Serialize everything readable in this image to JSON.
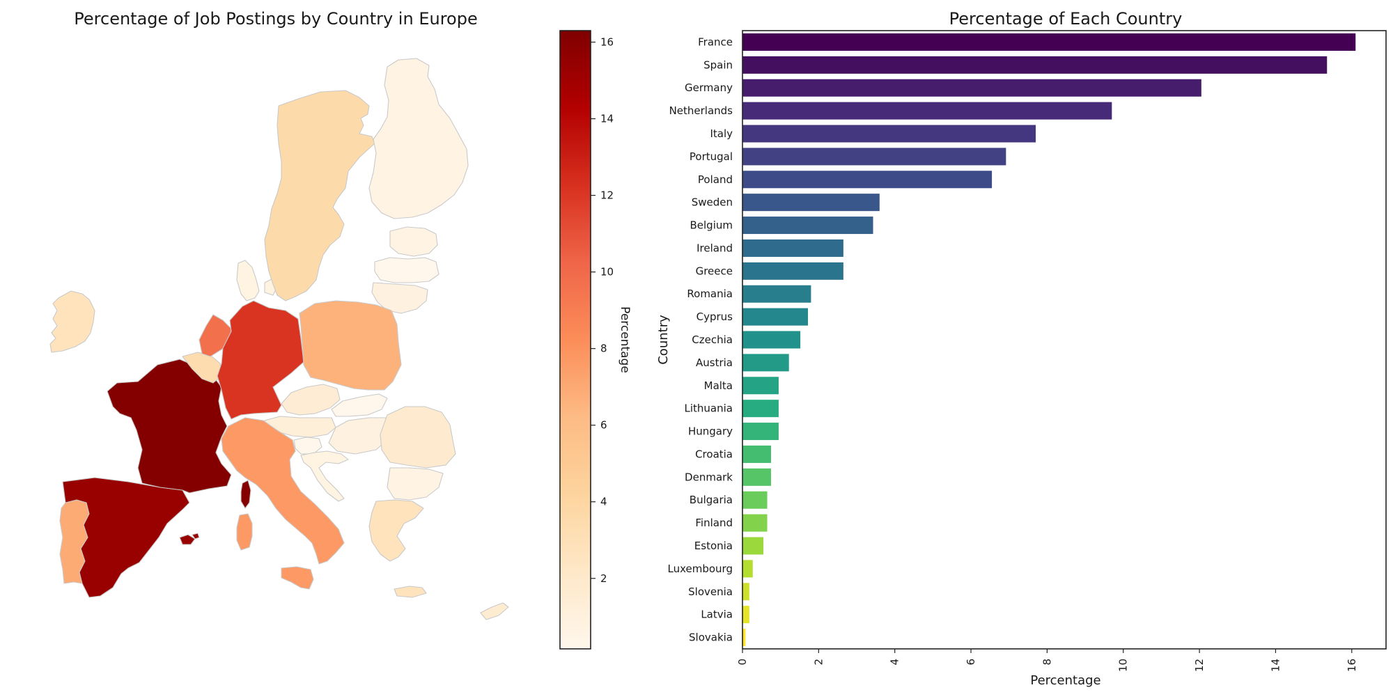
{
  "chart_data": [
    {
      "type": "choropleth-map",
      "title": "Percentage of Job Postings by Country in Europe",
      "colorbar": {
        "label": "Percentage",
        "range": [
          0.16,
          16.3
        ],
        "ticks": [
          2,
          4,
          6,
          8,
          10,
          12,
          14,
          16
        ],
        "colormap": "OrRd"
      },
      "regions": [
        {
          "id": "ireland",
          "value": 2.7
        },
        {
          "id": "portugal",
          "value": 6.9
        },
        {
          "id": "spain",
          "value": 15.3
        },
        {
          "id": "france",
          "value": 16.1
        },
        {
          "id": "belgium",
          "value": 3.4
        },
        {
          "id": "netherlands",
          "value": 9.7
        },
        {
          "id": "germany",
          "value": 12.1
        },
        {
          "id": "denmark",
          "value": 0.7
        },
        {
          "id": "sweden",
          "value": 3.6
        },
        {
          "id": "finland",
          "value": 0.6
        },
        {
          "id": "estonia",
          "value": 0.6
        },
        {
          "id": "latvia",
          "value": 0.2
        },
        {
          "id": "lithuania",
          "value": 0.9
        },
        {
          "id": "poland",
          "value": 6.6
        },
        {
          "id": "czechia",
          "value": 1.5
        },
        {
          "id": "slovakia",
          "value": 0.1
        },
        {
          "id": "austria",
          "value": 1.2
        },
        {
          "id": "slovenia",
          "value": 0.2
        },
        {
          "id": "croatia",
          "value": 0.7
        },
        {
          "id": "hungary",
          "value": 0.9
        },
        {
          "id": "romania",
          "value": 1.8
        },
        {
          "id": "bulgaria",
          "value": 0.6
        },
        {
          "id": "greece",
          "value": 2.7
        },
        {
          "id": "italy",
          "value": 7.7
        },
        {
          "id": "corsica",
          "value": 16.1
        },
        {
          "id": "sardinia",
          "value": 7.7
        },
        {
          "id": "sicily",
          "value": 7.7
        },
        {
          "id": "balearics",
          "value": 15.3
        },
        {
          "id": "cyprus",
          "value": 1.7
        }
      ]
    },
    {
      "type": "bar",
      "orientation": "horizontal",
      "title": "Percentage of Each Country",
      "xlabel": "Percentage",
      "ylabel": "Country",
      "xlim": [
        0,
        16.9
      ],
      "xticks": [
        0,
        2,
        4,
        6,
        8,
        10,
        12,
        14,
        16
      ],
      "colormap": "viridis",
      "categories": [
        "France",
        "Spain",
        "Germany",
        "Netherlands",
        "Italy",
        "Portugal",
        "Poland",
        "Sweden",
        "Belgium",
        "Ireland",
        "Greece",
        "Romania",
        "Cyprus",
        "Czechia",
        "Austria",
        "Malta",
        "Lithuania",
        "Hungary",
        "Croatia",
        "Denmark",
        "Bulgaria",
        "Finland",
        "Estonia",
        "Luxembourg",
        "Slovenia",
        "Latvia",
        "Slovakia"
      ],
      "values": [
        16.1,
        15.35,
        12.05,
        9.7,
        7.7,
        6.92,
        6.55,
        3.6,
        3.43,
        2.65,
        2.65,
        1.8,
        1.72,
        1.52,
        1.22,
        0.95,
        0.95,
        0.95,
        0.75,
        0.75,
        0.65,
        0.65,
        0.55,
        0.27,
        0.18,
        0.18,
        0.08
      ]
    }
  ]
}
